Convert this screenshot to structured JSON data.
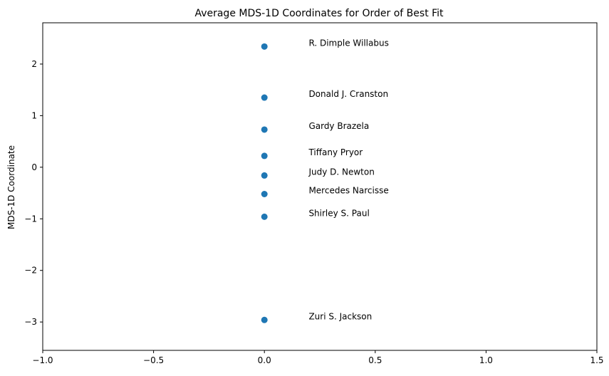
{
  "chart_data": {
    "type": "scatter",
    "title": "Average MDS-1D Coordinates for Order of Best Fit",
    "xlabel": "",
    "ylabel": "MDS-1D Coordinate",
    "xlim": [
      -1.0,
      1.5
    ],
    "ylim": [
      -3.55,
      2.8
    ],
    "x_ticks": [
      "−1.0",
      "−0.5",
      "0.0",
      "0.5",
      "1.0",
      "1.5"
    ],
    "x_tick_values": [
      -1.0,
      -0.5,
      0.0,
      0.5,
      1.0,
      1.5
    ],
    "y_ticks": [
      "−3",
      "−2",
      "−1",
      "0",
      "1",
      "2"
    ],
    "y_tick_values": [
      -3,
      -2,
      -1,
      0,
      1,
      2
    ],
    "grid": false,
    "marker_color": "#1f77b4",
    "points": [
      {
        "x": 0.0,
        "y": 2.34,
        "label": "R. Dimple Willabus"
      },
      {
        "x": 0.0,
        "y": 1.35,
        "label": "Donald J. Cranston"
      },
      {
        "x": 0.0,
        "y": 0.73,
        "label": "Gardy Brazela"
      },
      {
        "x": 0.0,
        "y": 0.22,
        "label": "Tiffany Pryor"
      },
      {
        "x": 0.0,
        "y": -0.16,
        "label": "Judy D. Newton"
      },
      {
        "x": 0.0,
        "y": -0.52,
        "label": "Mercedes Narcisse"
      },
      {
        "x": 0.0,
        "y": -0.96,
        "label": "Shirley S. Paul"
      },
      {
        "x": 0.0,
        "y": -2.96,
        "label": "Zuri S. Jackson"
      }
    ],
    "label_x": 0.2
  }
}
